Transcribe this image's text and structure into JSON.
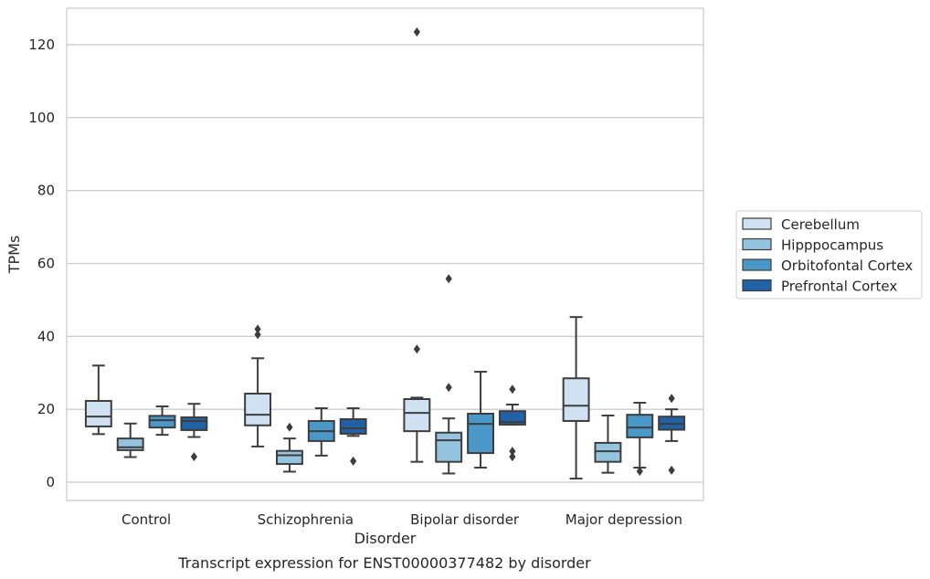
{
  "chart_data": {
    "type": "boxplot",
    "caption": "Transcript expression for ENST00000377482 by disorder",
    "xlabel": "Disorder",
    "ylabel": "TPMs",
    "ylim": [
      -5,
      130
    ],
    "yticks": [
      0,
      20,
      40,
      60,
      80,
      100,
      120
    ],
    "grid": "horizontal",
    "legend_position": "right",
    "categories": [
      "Control",
      "Schizophrenia",
      "Bipolar disorder",
      "Major depression"
    ],
    "series": [
      {
        "name": "Cerebellum",
        "color": "#d0e1f2",
        "boxes": [
          {
            "whislo": 13.2,
            "q1": 15.3,
            "med": 18.0,
            "q3": 22.3,
            "whishi": 32.0,
            "fliers": []
          },
          {
            "whislo": 9.8,
            "q1": 15.6,
            "med": 18.5,
            "q3": 24.3,
            "whishi": 34.0,
            "fliers": [
              40.5,
              42.0
            ]
          },
          {
            "whislo": 5.6,
            "q1": 14.0,
            "med": 19.0,
            "q3": 22.8,
            "whishi": 23.2,
            "fliers": [
              36.5,
              123.5
            ]
          },
          {
            "whislo": 1.0,
            "q1": 16.8,
            "med": 21.0,
            "q3": 28.5,
            "whishi": 45.3,
            "fliers": []
          }
        ]
      },
      {
        "name": "Hipppocampus",
        "color": "#94c4df",
        "boxes": [
          {
            "whislo": 6.9,
            "q1": 8.8,
            "med": 9.6,
            "q3": 12.0,
            "whishi": 16.1,
            "fliers": []
          },
          {
            "whislo": 2.9,
            "q1": 5.0,
            "med": 7.4,
            "q3": 8.6,
            "whishi": 12.0,
            "fliers": [
              15.1
            ]
          },
          {
            "whislo": 2.4,
            "q1": 5.6,
            "med": 11.5,
            "q3": 13.6,
            "whishi": 17.5,
            "fliers": [
              26.0,
              55.8
            ]
          },
          {
            "whislo": 2.6,
            "q1": 5.6,
            "med": 8.5,
            "q3": 10.8,
            "whishi": 18.3,
            "fliers": []
          }
        ]
      },
      {
        "name": "Orbitofontal Cortex",
        "color": "#4a98c9",
        "boxes": [
          {
            "whislo": 13.0,
            "q1": 15.0,
            "med": 17.0,
            "q3": 18.2,
            "whishi": 20.8,
            "fliers": []
          },
          {
            "whislo": 7.3,
            "q1": 11.3,
            "med": 14.0,
            "q3": 16.8,
            "whishi": 20.3,
            "fliers": []
          },
          {
            "whislo": 4.0,
            "q1": 8.0,
            "med": 16.0,
            "q3": 18.8,
            "whishi": 30.3,
            "fliers": []
          },
          {
            "whislo": 4.0,
            "q1": 12.3,
            "med": 15.0,
            "q3": 18.5,
            "whishi": 21.8,
            "fliers": [
              3.0
            ]
          }
        ]
      },
      {
        "name": "Prefrontal Cortex",
        "color": "#2161a6",
        "boxes": [
          {
            "whislo": 12.4,
            "q1": 14.3,
            "med": 16.8,
            "q3": 17.8,
            "whishi": 21.5,
            "fliers": [
              7.0
            ]
          },
          {
            "whislo": 12.7,
            "q1": 13.3,
            "med": 14.8,
            "q3": 17.3,
            "whishi": 20.3,
            "fliers": [
              5.8
            ]
          },
          {
            "whislo": 15.8,
            "q1": 15.8,
            "med": 16.5,
            "q3": 19.5,
            "whishi": 21.3,
            "fliers": [
              7.0,
              8.5,
              25.5
            ]
          },
          {
            "whislo": 11.3,
            "q1": 14.4,
            "med": 16.0,
            "q3": 18.0,
            "whishi": 20.0,
            "fliers": [
              3.3,
              23.0
            ]
          }
        ]
      }
    ]
  }
}
